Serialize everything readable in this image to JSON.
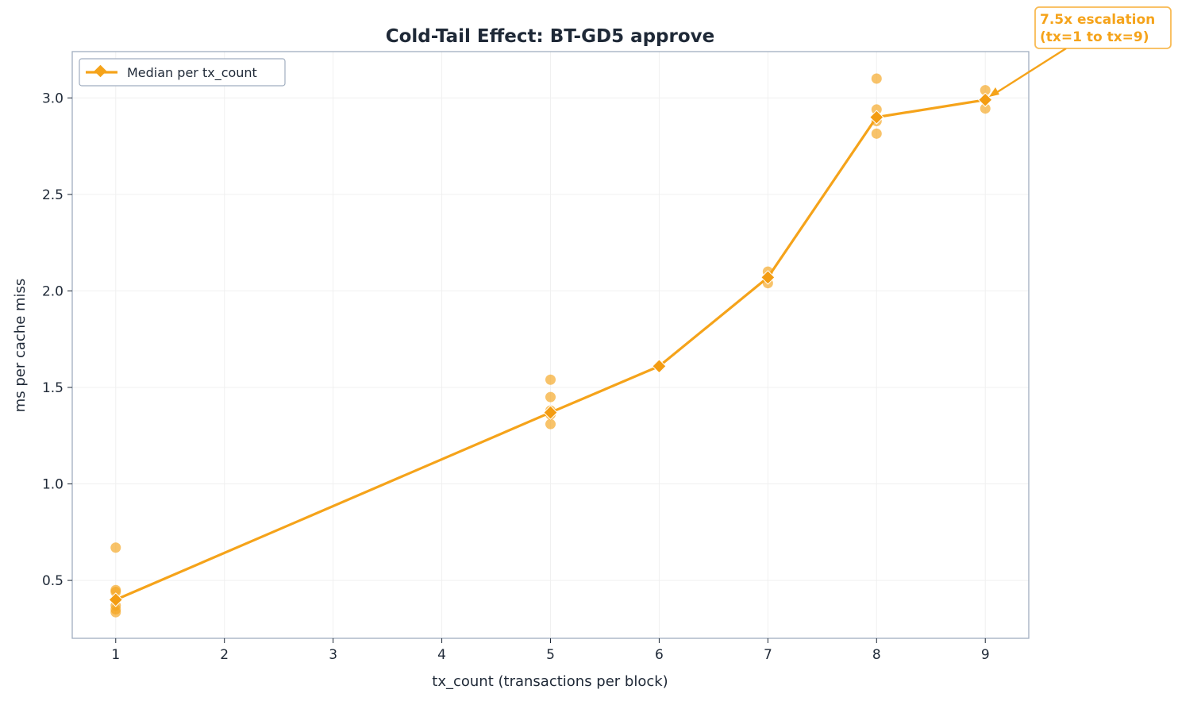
{
  "chart_data": {
    "type": "scatter",
    "title": "Cold-Tail Effect: BT-GD5 approve",
    "xlabel": "tx_count (transactions per block)",
    "ylabel": "ms per cache miss",
    "xlim": [
      0.6,
      9.4
    ],
    "ylim": [
      0.2,
      3.24
    ],
    "xticks": [
      1,
      2,
      3,
      4,
      5,
      6,
      7,
      8,
      9
    ],
    "yticks": [
      0.5,
      1.0,
      1.5,
      2.0,
      2.5,
      3.0
    ],
    "ytick_labels": [
      "0.5",
      "1.0",
      "1.5",
      "2.0",
      "2.5",
      "3.0"
    ],
    "grid": true,
    "legend_position": "top-left",
    "color": "#f5a31a",
    "scatter_points": [
      {
        "x": 1,
        "y": 0.67
      },
      {
        "x": 1,
        "y": 0.45
      },
      {
        "x": 1,
        "y": 0.44
      },
      {
        "x": 1,
        "y": 0.37
      },
      {
        "x": 1,
        "y": 0.35
      },
      {
        "x": 1,
        "y": 0.335
      },
      {
        "x": 5,
        "y": 1.54
      },
      {
        "x": 5,
        "y": 1.45
      },
      {
        "x": 5,
        "y": 1.38
      },
      {
        "x": 5,
        "y": 1.36
      },
      {
        "x": 5,
        "y": 1.31
      },
      {
        "x": 6,
        "y": 1.61
      },
      {
        "x": 7,
        "y": 2.1
      },
      {
        "x": 7,
        "y": 2.04
      },
      {
        "x": 8,
        "y": 3.1
      },
      {
        "x": 8,
        "y": 2.94
      },
      {
        "x": 8,
        "y": 2.88
      },
      {
        "x": 8,
        "y": 2.815
      },
      {
        "x": 9,
        "y": 3.04
      },
      {
        "x": 9,
        "y": 2.945
      }
    ],
    "series": [
      {
        "name": "Median per tx_count",
        "type": "line",
        "marker": "diamond",
        "x": [
          1,
          5,
          6,
          7,
          8,
          9
        ],
        "y": [
          0.4,
          1.37,
          1.61,
          2.07,
          2.9,
          2.99
        ]
      }
    ],
    "annotation": {
      "line1": "7.5x escalation",
      "line2": "(tx=1 to tx=9)",
      "points_to": {
        "x": 9,
        "y": 2.99
      }
    }
  }
}
